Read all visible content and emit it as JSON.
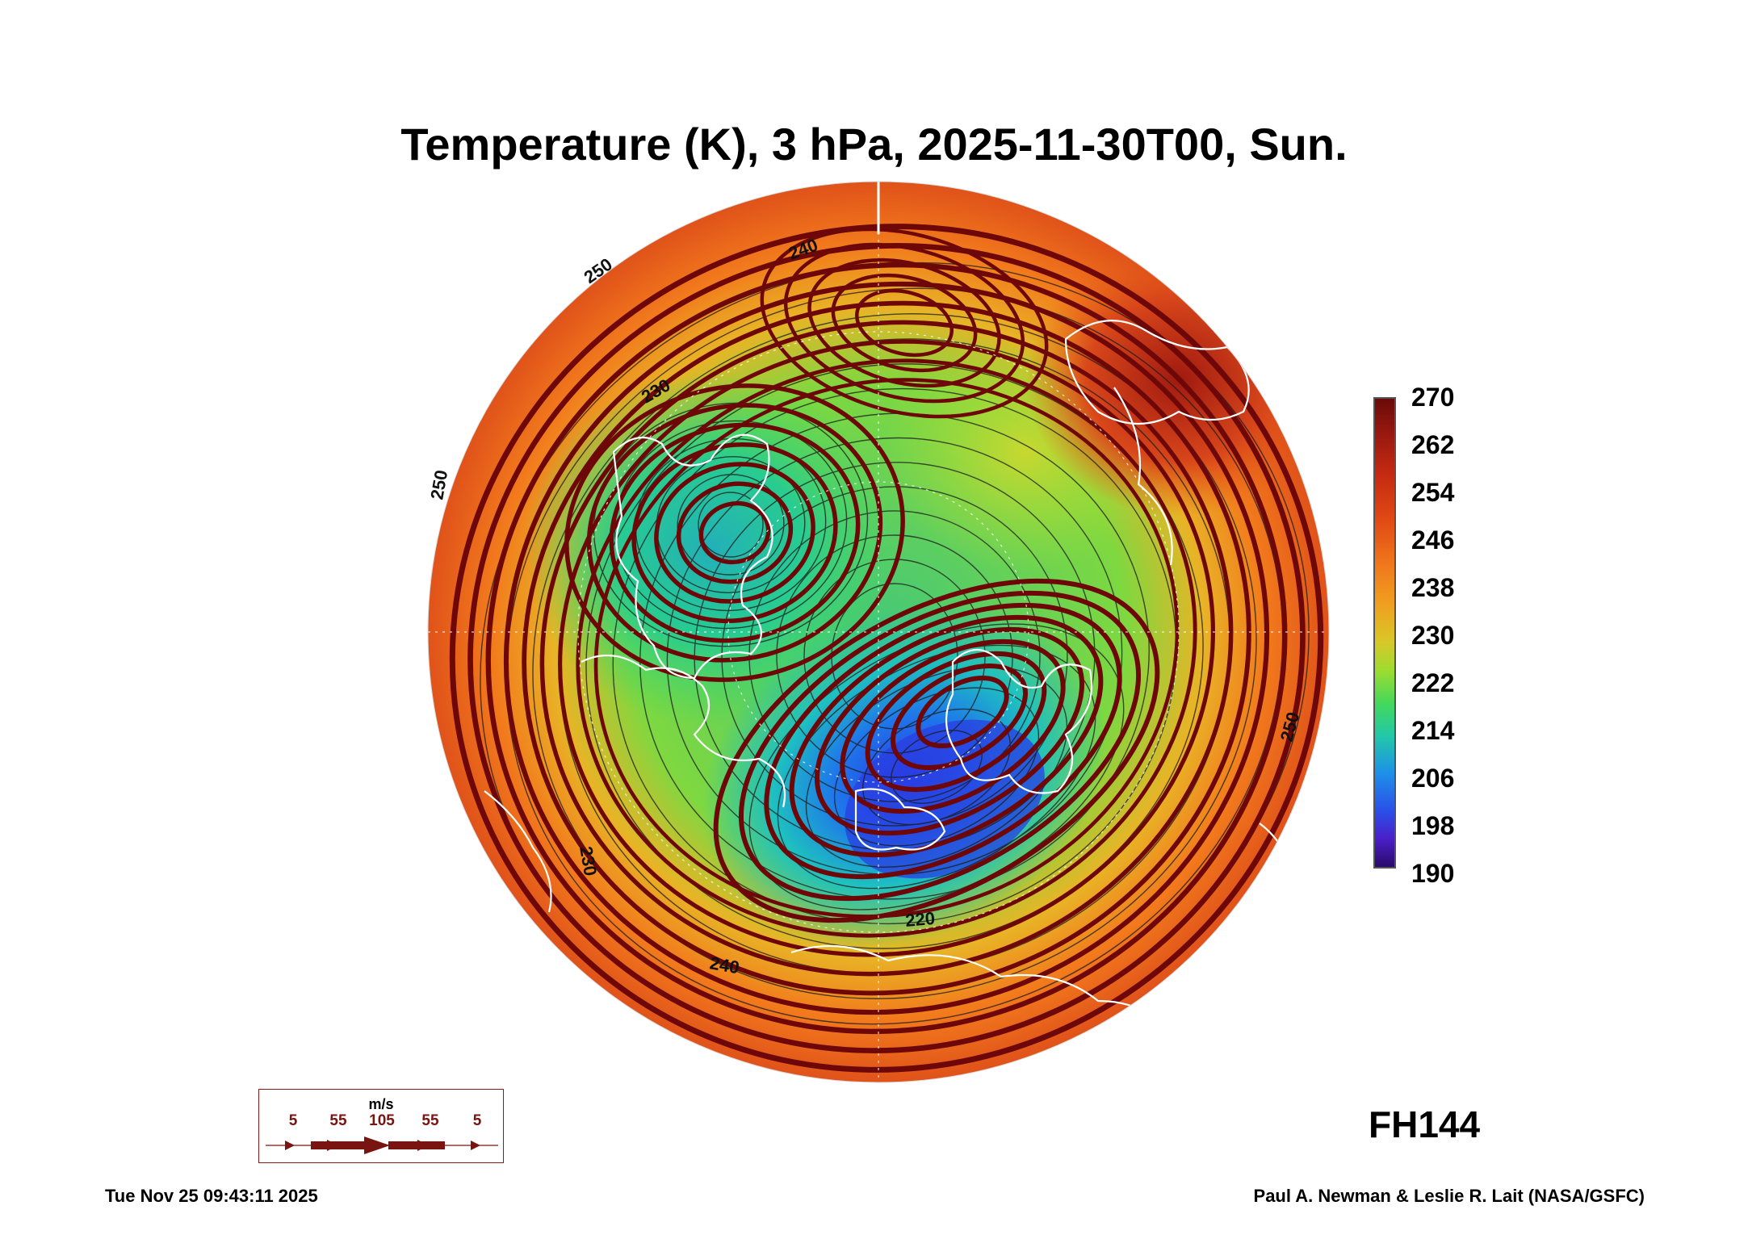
{
  "title": "Temperature (K), 3 hPa, 2025-11-30T00, Sun.",
  "colorbar": {
    "unit": "K",
    "labels": [
      "270",
      "262",
      "254",
      "246",
      "238",
      "230",
      "222",
      "214",
      "206",
      "198",
      "190"
    ],
    "range": [
      190,
      270
    ]
  },
  "contour_labels": [
    "240",
    "230",
    "250",
    "250",
    "220",
    "240",
    "230",
    "250"
  ],
  "forecast_hour": "FH144",
  "timestamp": "Tue Nov 25 09:43:11 2025",
  "credit": "Paul A. Newman & Leslie R. Lait (NASA/GSFC)",
  "wind_legend": {
    "unit": "m/s",
    "values": [
      "5",
      "55",
      "105",
      "55",
      "5"
    ]
  },
  "colors": {
    "cold": "#2a40e0",
    "cool": "#20c8b0",
    "mid": "#50d84a",
    "warm": "#f07a1c",
    "hot": "#8a1010",
    "streamline": "#6e0808",
    "coastline": "#ffffff"
  }
}
